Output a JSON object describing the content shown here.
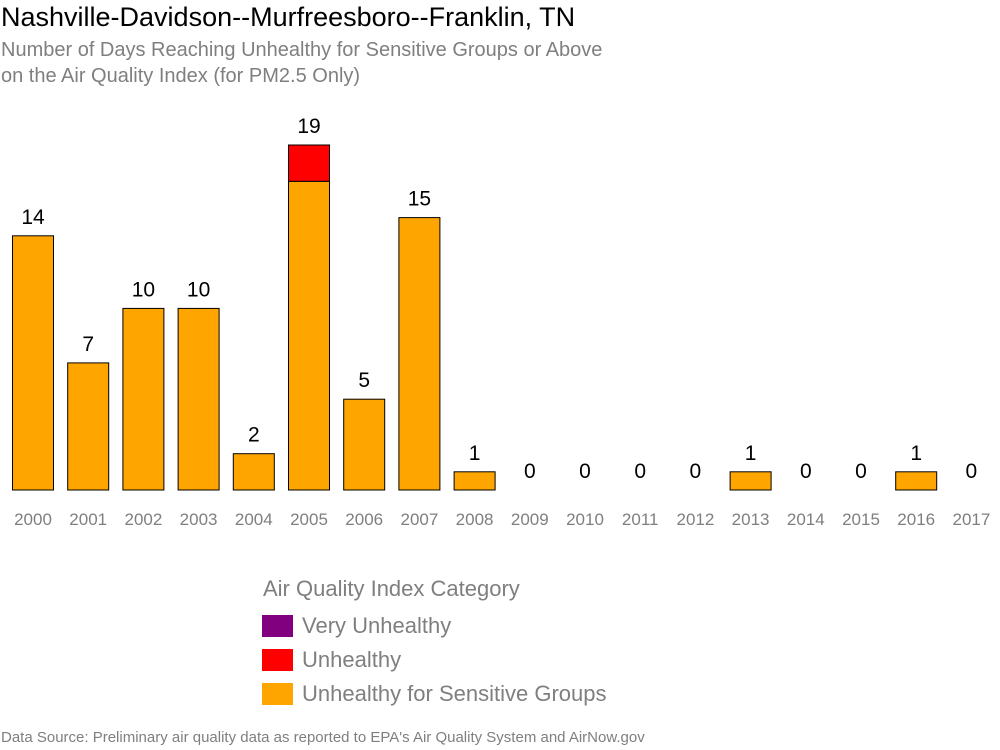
{
  "title": "Nashville-Davidson--Murfreesboro--Franklin, TN",
  "subtitle_lines": [
    "Number of Days Reaching Unhealthy for Sensitive Groups or Above",
    "on the Air Quality Index (for PM2.5 Only)"
  ],
  "legend": {
    "title": "Air Quality Index Category",
    "items": [
      {
        "label": "Very Unhealthy",
        "color": "#800080"
      },
      {
        "label": "Unhealthy",
        "color": "#ff0000"
      },
      {
        "label": "Unhealthy for Sensitive Groups",
        "color": "#ffa500"
      }
    ]
  },
  "source": "Data Source: Preliminary air quality data as reported to EPA's Air Quality System and AirNow.gov",
  "chart_data": {
    "type": "bar",
    "stacked": true,
    "categories": [
      "2000",
      "2001",
      "2002",
      "2003",
      "2004",
      "2005",
      "2006",
      "2007",
      "2008",
      "2009",
      "2010",
      "2011",
      "2012",
      "2013",
      "2014",
      "2015",
      "2016",
      "2017"
    ],
    "series": [
      {
        "name": "Unhealthy for Sensitive Groups",
        "color": "#ffa500",
        "values": [
          14,
          7,
          10,
          10,
          2,
          17,
          5,
          15,
          1,
          0,
          0,
          0,
          0,
          1,
          0,
          0,
          1,
          0
        ]
      },
      {
        "name": "Unhealthy",
        "color": "#ff0000",
        "values": [
          0,
          0,
          0,
          0,
          0,
          2,
          0,
          0,
          0,
          0,
          0,
          0,
          0,
          0,
          0,
          0,
          0,
          0
        ]
      },
      {
        "name": "Very Unhealthy",
        "color": "#800080",
        "values": [
          0,
          0,
          0,
          0,
          0,
          0,
          0,
          0,
          0,
          0,
          0,
          0,
          0,
          0,
          0,
          0,
          0,
          0
        ]
      }
    ],
    "totals": [
      14,
      7,
      10,
      10,
      2,
      19,
      5,
      15,
      1,
      0,
      0,
      0,
      0,
      1,
      0,
      0,
      1,
      0
    ],
    "ylim": [
      0,
      19
    ],
    "grid": false,
    "legend_position": "bottom"
  }
}
